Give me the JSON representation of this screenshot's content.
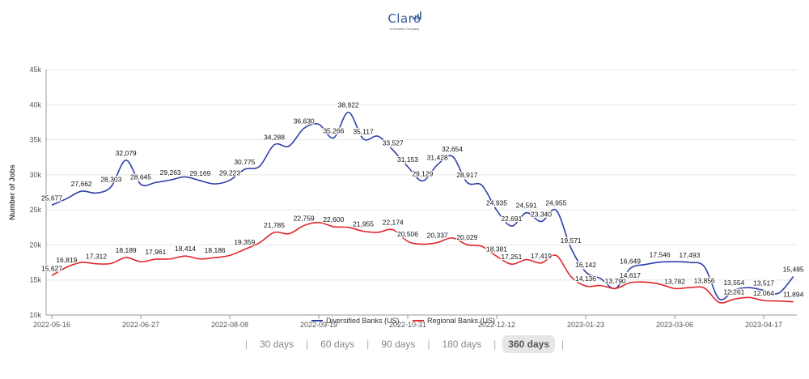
{
  "logo": {
    "text": "Claro",
    "sub": "A Horsefly Company"
  },
  "range_selector": {
    "options": [
      "30 days",
      "60 days",
      "90 days",
      "180 days",
      "360 days"
    ],
    "active": "360 days"
  },
  "colors": {
    "diversified": "#2f3fa8",
    "regional": "#e0262b",
    "grid": "#e6e6e6",
    "axis": "#555555"
  },
  "chart_data": {
    "type": "line",
    "title": "",
    "xlabel": "",
    "ylabel": "Number of Jobs",
    "ylim": [
      10000,
      45000
    ],
    "yticks": [
      "10k",
      "15k",
      "20k",
      "25k",
      "30k",
      "35k",
      "40k",
      "45k"
    ],
    "xticks": [
      "2022-05-16",
      "2022-06-27",
      "2022-08-08",
      "2022-09-19",
      "2022-10-31",
      "2022-12-12",
      "2023-01-23",
      "2023-03-06",
      "2023-04-17"
    ],
    "grid": true,
    "legend": "bottom-center",
    "series": [
      {
        "name": "Diversified Banks (US)",
        "color": "#2f3fa8",
        "points": [
          [
            "2022-05-16",
            25677
          ],
          [
            "2022-05-23",
            26600
          ],
          [
            "2022-05-30",
            27662
          ],
          [
            "2022-06-06",
            27400
          ],
          [
            "2022-06-13",
            28303
          ],
          [
            "2022-06-20",
            32079
          ],
          [
            "2022-06-27",
            28645
          ],
          [
            "2022-07-04",
            28900
          ],
          [
            "2022-07-11",
            29263
          ],
          [
            "2022-07-18",
            29700
          ],
          [
            "2022-07-25",
            29169
          ],
          [
            "2022-08-01",
            28700
          ],
          [
            "2022-08-08",
            29223
          ],
          [
            "2022-08-15",
            30775
          ],
          [
            "2022-08-22",
            31200
          ],
          [
            "2022-08-29",
            34288
          ],
          [
            "2022-09-05",
            34100
          ],
          [
            "2022-09-12",
            36630
          ],
          [
            "2022-09-19",
            37200
          ],
          [
            "2022-09-26",
            35266
          ],
          [
            "2022-10-03",
            38922
          ],
          [
            "2022-10-10",
            35117
          ],
          [
            "2022-10-17",
            35500
          ],
          [
            "2022-10-24",
            33527
          ],
          [
            "2022-10-31",
            31153
          ],
          [
            "2022-11-07",
            29129
          ],
          [
            "2022-11-14",
            31428
          ],
          [
            "2022-11-21",
            32654
          ],
          [
            "2022-11-28",
            28917
          ],
          [
            "2022-12-05",
            28500
          ],
          [
            "2022-12-12",
            24935
          ],
          [
            "2022-12-19",
            22691
          ],
          [
            "2022-12-26",
            24591
          ],
          [
            "2023-01-02",
            23340
          ],
          [
            "2023-01-09",
            24955
          ],
          [
            "2023-01-16",
            19571
          ],
          [
            "2023-01-23",
            16142
          ],
          [
            "2023-01-30",
            15200
          ],
          [
            "2023-02-06",
            13790
          ],
          [
            "2023-02-13",
            16649
          ],
          [
            "2023-02-20",
            17200
          ],
          [
            "2023-02-27",
            17546
          ],
          [
            "2023-03-06",
            17600
          ],
          [
            "2023-03-13",
            17493
          ],
          [
            "2023-03-20",
            16900
          ],
          [
            "2023-03-27",
            12300
          ],
          [
            "2023-04-03",
            13554
          ],
          [
            "2023-04-10",
            13900
          ],
          [
            "2023-04-17",
            13517
          ],
          [
            "2023-04-24",
            13100
          ],
          [
            "2023-05-01",
            15485
          ]
        ],
        "labels": [
          [
            "2022-05-16",
            25677
          ],
          [
            "2022-05-30",
            27662
          ],
          [
            "2022-06-13",
            28303
          ],
          [
            "2022-06-20",
            32079
          ],
          [
            "2022-06-27",
            28645
          ],
          [
            "2022-07-11",
            29263
          ],
          [
            "2022-07-25",
            29169
          ],
          [
            "2022-08-08",
            29223
          ],
          [
            "2022-08-15",
            30775
          ],
          [
            "2022-08-29",
            34288
          ],
          [
            "2022-09-12",
            36630
          ],
          [
            "2022-09-26",
            35266
          ],
          [
            "2022-10-03",
            38922
          ],
          [
            "2022-10-10",
            35117
          ],
          [
            "2022-10-24",
            33527
          ],
          [
            "2022-10-31",
            31153
          ],
          [
            "2022-11-07",
            29129
          ],
          [
            "2022-11-14",
            31428
          ],
          [
            "2022-11-21",
            32654
          ],
          [
            "2022-11-28",
            28917
          ],
          [
            "2022-12-12",
            24935
          ],
          [
            "2022-12-19",
            22691
          ],
          [
            "2022-12-26",
            24591
          ],
          [
            "2023-01-02",
            23340
          ],
          [
            "2023-01-09",
            24955
          ],
          [
            "2023-01-16",
            19571
          ],
          [
            "2023-01-23",
            16142
          ],
          [
            "2023-02-06",
            13790
          ],
          [
            "2023-02-13",
            16649
          ],
          [
            "2023-02-27",
            17546
          ],
          [
            "2023-03-13",
            17493
          ],
          [
            "2023-04-03",
            13554
          ],
          [
            "2023-04-17",
            13517
          ],
          [
            "2023-05-01",
            15485
          ]
        ]
      },
      {
        "name": "Regional Banks (US)",
        "color": "#e0262b",
        "points": [
          [
            "2022-05-16",
            15627
          ],
          [
            "2022-05-23",
            16819
          ],
          [
            "2022-05-30",
            17500
          ],
          [
            "2022-06-06",
            17312
          ],
          [
            "2022-06-13",
            17350
          ],
          [
            "2022-06-20",
            18189
          ],
          [
            "2022-06-27",
            17600
          ],
          [
            "2022-07-04",
            17961
          ],
          [
            "2022-07-11",
            18000
          ],
          [
            "2022-07-18",
            18414
          ],
          [
            "2022-07-25",
            18000
          ],
          [
            "2022-08-01",
            18186
          ],
          [
            "2022-08-08",
            18500
          ],
          [
            "2022-08-15",
            19359
          ],
          [
            "2022-08-22",
            20300
          ],
          [
            "2022-08-29",
            21785
          ],
          [
            "2022-09-05",
            21600
          ],
          [
            "2022-09-12",
            22759
          ],
          [
            "2022-09-19",
            23200
          ],
          [
            "2022-09-26",
            22600
          ],
          [
            "2022-10-03",
            22500
          ],
          [
            "2022-10-10",
            21955
          ],
          [
            "2022-10-17",
            21800
          ],
          [
            "2022-10-24",
            22174
          ],
          [
            "2022-10-31",
            20506
          ],
          [
            "2022-11-07",
            20100
          ],
          [
            "2022-11-14",
            20337
          ],
          [
            "2022-11-21",
            21000
          ],
          [
            "2022-11-28",
            20029
          ],
          [
            "2022-12-05",
            19800
          ],
          [
            "2022-12-12",
            18381
          ],
          [
            "2022-12-19",
            17251
          ],
          [
            "2022-12-26",
            17900
          ],
          [
            "2023-01-02",
            17419
          ],
          [
            "2023-01-09",
            18500
          ],
          [
            "2023-01-16",
            15500
          ],
          [
            "2023-01-23",
            14136
          ],
          [
            "2023-01-30",
            14200
          ],
          [
            "2023-02-06",
            13790
          ],
          [
            "2023-02-13",
            14617
          ],
          [
            "2023-02-20",
            14700
          ],
          [
            "2023-02-27",
            14400
          ],
          [
            "2023-03-06",
            13782
          ],
          [
            "2023-03-13",
            13900
          ],
          [
            "2023-03-20",
            13856
          ],
          [
            "2023-03-27",
            11800
          ],
          [
            "2023-04-03",
            12261
          ],
          [
            "2023-04-10",
            12500
          ],
          [
            "2023-04-17",
            12064
          ],
          [
            "2023-04-24",
            12000
          ],
          [
            "2023-05-01",
            11894
          ]
        ],
        "labels": [
          [
            "2022-05-16",
            15627
          ],
          [
            "2022-05-23",
            16819
          ],
          [
            "2022-06-06",
            17312
          ],
          [
            "2022-06-20",
            18189
          ],
          [
            "2022-07-04",
            17961
          ],
          [
            "2022-07-18",
            18414
          ],
          [
            "2022-08-01",
            18186
          ],
          [
            "2022-08-15",
            19359
          ],
          [
            "2022-08-29",
            21785
          ],
          [
            "2022-09-12",
            22759
          ],
          [
            "2022-09-26",
            22600
          ],
          [
            "2022-10-10",
            21955
          ],
          [
            "2022-10-24",
            22174
          ],
          [
            "2022-10-31",
            20506
          ],
          [
            "2022-11-14",
            20337
          ],
          [
            "2022-11-28",
            20029
          ],
          [
            "2022-12-12",
            18381
          ],
          [
            "2022-12-19",
            17251
          ],
          [
            "2023-01-02",
            17419
          ],
          [
            "2023-01-23",
            14136
          ],
          [
            "2023-02-06",
            13790
          ],
          [
            "2023-02-13",
            14617
          ],
          [
            "2023-03-06",
            13782
          ],
          [
            "2023-03-20",
            13856
          ],
          [
            "2023-04-03",
            12261
          ],
          [
            "2023-04-17",
            12064
          ],
          [
            "2023-05-01",
            11894
          ]
        ]
      }
    ]
  }
}
